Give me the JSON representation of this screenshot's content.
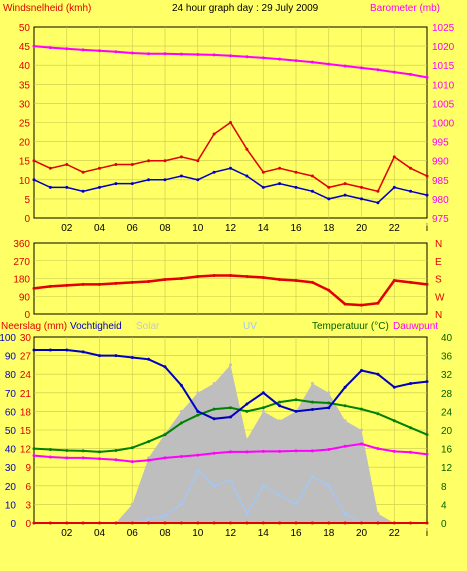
{
  "header": {
    "left_label": "Windsnelheid (kmh)",
    "title": "24 hour graph day : 29 July 2009",
    "right_label": "Barometer (mb)"
  },
  "bottom_header": {
    "neerslag": "Neerslag (mm)",
    "vochtigheid": "Vochtigheid",
    "solar": "Solar",
    "uv": "UV",
    "temperatuur": "Temperatuur (°C)",
    "dauwpunt": "Dauwpunt"
  },
  "colors": {
    "background": "#ffff66",
    "grid": "#c8c850",
    "wind_gust": "#e00000",
    "wind_avg": "#0000c0",
    "barometer": "#ff00ff",
    "direction": "#e00000",
    "humidity": "#0000c0",
    "temperature": "#008000",
    "dewpoint": "#ff00ff",
    "solar": "#bebebe",
    "uv": "#9fc8ff",
    "rain": "#e00000"
  },
  "x_axis": {
    "range": [
      0,
      24
    ],
    "tick_labels": [
      "02",
      "04",
      "06",
      "08",
      "10",
      "12",
      "14",
      "16",
      "18",
      "20",
      "22",
      "i"
    ]
  },
  "chart_data": [
    {
      "type": "line",
      "name": "wind-barometer",
      "x": [
        0,
        1,
        2,
        3,
        4,
        5,
        6,
        7,
        8,
        9,
        10,
        11,
        12,
        13,
        14,
        15,
        16,
        17,
        18,
        19,
        20,
        21,
        22,
        23,
        24
      ],
      "series": [
        {
          "name": "Windsnelheid",
          "axis": "left",
          "values": [
            15,
            13,
            14,
            12,
            13,
            14,
            14,
            15,
            15,
            16,
            15,
            22,
            25,
            18,
            12,
            13,
            12,
            11,
            8,
            9,
            8,
            7,
            16,
            13,
            11
          ]
        },
        {
          "name": "Windsnelheid",
          "axis": "left",
          "values": [
            10,
            8,
            8,
            7,
            8,
            9,
            9,
            10,
            10,
            11,
            10,
            12,
            13,
            11,
            8,
            9,
            8,
            7,
            5,
            6,
            5,
            4,
            8,
            7,
            6
          ]
        },
        {
          "name": "Barometer",
          "axis": "right",
          "values": [
            1020,
            1019.6,
            1019.3,
            1019,
            1018.8,
            1018.5,
            1018.2,
            1018,
            1018,
            1017.9,
            1017.8,
            1017.7,
            1017.5,
            1017.2,
            1016.9,
            1016.6,
            1016.2,
            1015.8,
            1015.3,
            1014.8,
            1014.3,
            1013.8,
            1013.2,
            1012.6,
            1011.8
          ]
        }
      ],
      "y_left": {
        "label": "Windsnelheid (kmh)",
        "range": [
          0,
          50
        ],
        "ticks": [
          0,
          5,
          10,
          15,
          20,
          25,
          30,
          35,
          40,
          45,
          50
        ]
      },
      "y_right": {
        "label": "Barometer (mb)",
        "range": [
          975,
          1025
        ],
        "ticks": [
          975,
          980,
          985,
          990,
          995,
          1000,
          1005,
          1010,
          1015,
          1020,
          1025
        ]
      },
      "grid": true
    },
    {
      "type": "line",
      "name": "wind-direction",
      "x": [
        0,
        1,
        2,
        3,
        4,
        5,
        6,
        7,
        8,
        9,
        10,
        11,
        12,
        13,
        14,
        15,
        16,
        17,
        18,
        19,
        20,
        21,
        22,
        23,
        24
      ],
      "series": [
        {
          "name": "",
          "values": [
            130,
            140,
            145,
            150,
            150,
            155,
            160,
            165,
            175,
            180,
            190,
            195,
            195,
            190,
            185,
            175,
            170,
            160,
            120,
            50,
            45,
            55,
            170,
            160,
            150
          ]
        }
      ],
      "y_left": {
        "range": [
          0,
          360
        ],
        "ticks": [
          0,
          90,
          180,
          270,
          360
        ]
      },
      "y_right": {
        "ticks": [
          "N",
          "W",
          "S",
          "E",
          "N"
        ]
      },
      "grid": true
    },
    {
      "type": "area",
      "name": "rain-humidity-solar-uv-temp",
      "x": [
        0,
        1,
        2,
        3,
        4,
        5,
        6,
        7,
        8,
        9,
        10,
        11,
        12,
        13,
        14,
        15,
        16,
        17,
        18,
        19,
        20,
        21,
        22,
        23,
        24
      ],
      "series": [
        {
          "name": "Vochtigheid",
          "axis": "left",
          "values": [
            93,
            93,
            93,
            92,
            90,
            90,
            89,
            88,
            84,
            74,
            60,
            56,
            57,
            64,
            70,
            63,
            60,
            61,
            62,
            73,
            82,
            80,
            73,
            75,
            76
          ]
        },
        {
          "name": "Temperatuur",
          "axis": "right",
          "values": [
            16,
            15.8,
            15.6,
            15.5,
            15.3,
            15.6,
            16.2,
            17.5,
            19,
            21.5,
            23.2,
            24.5,
            24.8,
            24,
            24.8,
            26,
            26.5,
            26,
            25.8,
            25.2,
            24.5,
            23.5,
            22,
            20.5,
            19
          ]
        },
        {
          "name": "Dauwpunt",
          "axis": "right",
          "values": [
            14.5,
            14.2,
            14,
            14,
            13.8,
            13.6,
            13.2,
            13.5,
            14,
            14.3,
            14.6,
            15,
            15.3,
            15.3,
            15.4,
            15.4,
            15.5,
            15.5,
            15.8,
            16.5,
            17,
            16,
            15.4,
            15.2,
            14.8
          ]
        },
        {
          "name": "Solar",
          "axis": "percent",
          "values": [
            0,
            0,
            0,
            0,
            0,
            0,
            10,
            35,
            48,
            60,
            70,
            75,
            85,
            45,
            60,
            55,
            60,
            75,
            70,
            55,
            50,
            5,
            0,
            0,
            0
          ]
        },
        {
          "name": "UV",
          "axis": "percent",
          "values": [
            0,
            0,
            0,
            0,
            0,
            0,
            0,
            2,
            4,
            10,
            28,
            20,
            23,
            5,
            20,
            15,
            10,
            25,
            20,
            5,
            0,
            0,
            0,
            0,
            0
          ]
        },
        {
          "name": "Neerslag",
          "axis": "rain",
          "values": [
            0,
            0,
            0,
            0,
            0,
            0,
            0,
            0,
            0,
            0,
            0,
            0,
            0,
            0,
            0,
            0,
            0,
            0,
            0,
            0,
            0,
            0,
            0,
            0,
            0
          ]
        }
      ],
      "y_left_humidity": {
        "label": "Vochtigheid",
        "range": [
          0,
          100
        ],
        "ticks": [
          0,
          10,
          20,
          30,
          40,
          50,
          60,
          70,
          80,
          90,
          100
        ]
      },
      "y_left_rain": {
        "label": "Neerslag (mm)",
        "range": [
          0,
          30
        ],
        "ticks": [
          0,
          3,
          6,
          9,
          12,
          15,
          18,
          21,
          24,
          27,
          30
        ]
      },
      "y_right": {
        "label": "Temperatuur (°C)",
        "range": [
          0,
          40
        ],
        "ticks": [
          0,
          4,
          8,
          12,
          16,
          20,
          24,
          28,
          32,
          36,
          40
        ]
      },
      "grid": true
    }
  ]
}
